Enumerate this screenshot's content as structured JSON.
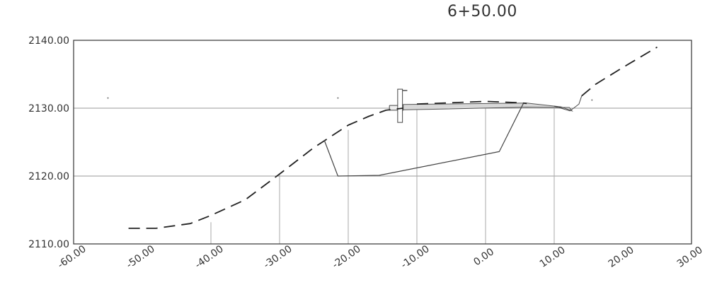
{
  "station_label": "6+50.00",
  "chart_data": {
    "type": "line",
    "title": "6+50.00",
    "x_ticks": [
      "-60.00",
      "-50.00",
      "-40.00",
      "-30.00",
      "-20.00",
      "-10.00",
      "0.00",
      "10.00",
      "20.00",
      "30.00"
    ],
    "y_ticks": [
      "2110.00",
      "2120.00",
      "2130.00",
      "2140.00"
    ],
    "xlim": [
      -60,
      30
    ],
    "ylim": [
      2110,
      2140
    ],
    "grid": "horizontal",
    "vertical_refs": [
      {
        "x": -40,
        "y": 2113.2
      },
      {
        "x": -30,
        "y": 2120.4
      },
      {
        "x": -20,
        "y": 2126.8
      },
      {
        "x": -10,
        "y": 2130.0
      },
      {
        "x": 0,
        "y": 2130.0
      },
      {
        "x": 10,
        "y": 2130.0
      }
    ],
    "series": [
      {
        "style": "dashed",
        "x": [
          -52,
          -48,
          -43,
          -40,
          -35,
          -30,
          -25,
          -20,
          -17,
          -14.5,
          -12
        ],
        "y": [
          2112.3,
          2112.3,
          2113.0,
          2114.2,
          2116.5,
          2120.3,
          2124.2,
          2127.5,
          2128.8,
          2129.7,
          2130.0
        ]
      },
      {
        "style": "dashed",
        "x": [
          -10,
          0,
          5,
          6
        ],
        "y": [
          2130.6,
          2131.0,
          2130.8,
          2130.7
        ]
      },
      {
        "style": "dashed",
        "x": [
          14,
          16,
          20,
          25
        ],
        "y": [
          2131.8,
          2133.5,
          2136.0,
          2139.0
        ]
      },
      {
        "style": "solid",
        "x": [
          -23.5,
          -21.5,
          -15.5,
          2,
          5.5
        ],
        "y": [
          2125.3,
          2120.0,
          2120.1,
          2123.6,
          2130.7
        ]
      }
    ]
  }
}
